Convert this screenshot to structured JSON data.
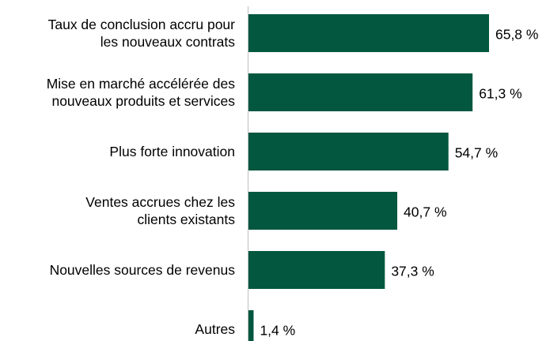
{
  "chart_data": {
    "type": "barh",
    "categories": [
      "Taux de conclusion accru pour\nles nouveaux contrats",
      "Mise en marché accélérée des\nnouveaux produits et services",
      "Plus forte innovation",
      "Ventes accrues chez les\nclients existants",
      "Nouvelles sources de revenus",
      "Autres"
    ],
    "values": [
      65.8,
      61.3,
      54.7,
      40.7,
      37.3,
      1.4
    ],
    "value_labels": [
      "65,8 %",
      "61,3 %",
      "54,7 %",
      "40,7 %",
      "37,3 %",
      "1,4 %"
    ],
    "color": "#03573f"
  }
}
